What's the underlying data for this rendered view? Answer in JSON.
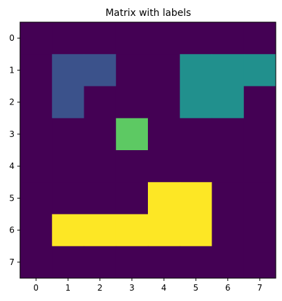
{
  "chart_data": {
    "type": "heatmap",
    "title": "Matrix with labels",
    "xlabel": "",
    "ylabel": "",
    "x_ticks": [
      "0",
      "1",
      "2",
      "3",
      "4",
      "5",
      "6",
      "7"
    ],
    "y_ticks": [
      "0",
      "1",
      "2",
      "3",
      "4",
      "5",
      "6",
      "7"
    ],
    "xlim": [
      -0.5,
      7.5
    ],
    "ylim": [
      7.5,
      -0.5
    ],
    "grid": false,
    "colormap": "viridis",
    "matrix": [
      [
        0,
        0,
        0,
        0,
        0,
        0,
        0,
        0
      ],
      [
        0,
        1,
        1,
        0,
        0,
        2,
        2,
        2
      ],
      [
        0,
        1,
        0,
        0,
        0,
        2,
        2,
        0
      ],
      [
        0,
        0,
        0,
        3,
        0,
        0,
        0,
        0
      ],
      [
        0,
        0,
        0,
        0,
        0,
        0,
        0,
        0
      ],
      [
        0,
        0,
        0,
        0,
        4,
        4,
        0,
        0
      ],
      [
        0,
        4,
        4,
        4,
        4,
        4,
        0,
        0
      ],
      [
        0,
        0,
        0,
        0,
        0,
        0,
        0,
        0
      ]
    ],
    "value_colors": {
      "0": "#440154",
      "1": "#3b528b",
      "2": "#21908d",
      "3": "#5dc963",
      "4": "#fde725"
    }
  }
}
